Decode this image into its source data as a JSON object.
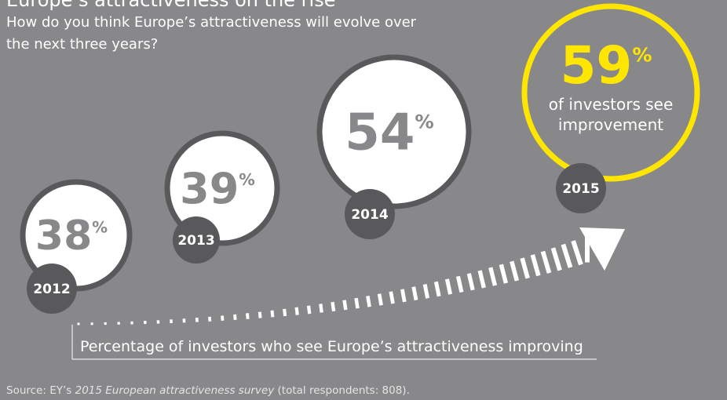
{
  "title": "Europe’s attractiveness on the rise",
  "subtitle": [
    "How do you think Europe’s attractiveness will evolve over",
    "the next three years?"
  ],
  "unit": "%",
  "items": [
    {
      "year": "2012",
      "value": 38
    },
    {
      "year": "2013",
      "value": 39
    },
    {
      "year": "2014",
      "value": 54
    },
    {
      "year": "2015",
      "value": 59,
      "label": [
        "of investors see",
        "improvement"
      ]
    }
  ],
  "caption": "Percentage of investors who see Europe’s attractiveness improving",
  "source": [
    "Source: EY’s ",
    "2015 European attractiveness survey",
    " (total respondents: 808)."
  ]
}
